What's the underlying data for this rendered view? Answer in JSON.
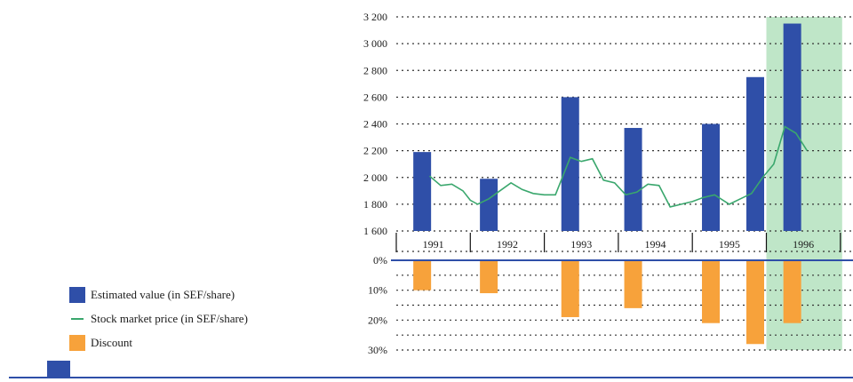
{
  "colors": {
    "bar": "#2f4fa8",
    "line": "#3aa76d",
    "discount": "#f7a23b",
    "shade": "#bfe6c8",
    "axis": "#2f4fa8",
    "grid": "#333333"
  },
  "legend": {
    "estimated": "Estimated value (in SEF/share)",
    "price": "Stock market price (in SEF/share)",
    "discount": "Discount"
  },
  "chart_data": {
    "type": "bar",
    "years": [
      "1991",
      "1992",
      "1993",
      "1994",
      "1995",
      "1996"
    ],
    "top_panel": {
      "ylim": [
        1600,
        3200
      ],
      "ticks": [
        "3 200",
        "3 000",
        "2 800",
        "2 600",
        "2 400",
        "2 200",
        "2 000",
        "1 800",
        "1 600"
      ],
      "tick_values": [
        3200,
        3000,
        2800,
        2600,
        2400,
        2200,
        2000,
        1800,
        1600
      ],
      "grid": true,
      "shaded_period": "1996",
      "series": [
        {
          "name": "Estimated value (in SEF/share)",
          "type": "bar",
          "x": [
            1991.35,
            1992.25,
            1993.35,
            1994.2,
            1995.25,
            1995.85,
            1996.35
          ],
          "values": [
            2190,
            1990,
            2600,
            2370,
            2400,
            2750,
            3150
          ]
        },
        {
          "name": "Stock market price (in SEF/share)",
          "type": "line",
          "x": [
            1991.45,
            1991.6,
            1991.75,
            1991.9,
            1992.0,
            1992.1,
            1992.25,
            1992.4,
            1992.55,
            1992.7,
            1992.85,
            1993.0,
            1993.15,
            1993.35,
            1993.5,
            1993.65,
            1993.8,
            1993.95,
            1994.1,
            1994.25,
            1994.4,
            1994.55,
            1994.7,
            1994.85,
            1995.0,
            1995.15,
            1995.3,
            1995.5,
            1995.65,
            1995.8,
            1995.95,
            1996.1,
            1996.25,
            1996.4,
            1996.55
          ],
          "values": [
            2010,
            1940,
            1950,
            1900,
            1830,
            1800,
            1840,
            1900,
            1960,
            1910,
            1880,
            1870,
            1870,
            2150,
            2120,
            2140,
            1980,
            1960,
            1870,
            1890,
            1950,
            1940,
            1780,
            1800,
            1820,
            1850,
            1870,
            1800,
            1840,
            1880,
            2000,
            2100,
            2380,
            2330,
            2200
          ]
        }
      ]
    },
    "bottom_panel": {
      "ylim": [
        0,
        30
      ],
      "ticks": [
        "0%",
        "10%",
        "20%",
        "30%"
      ],
      "tick_values": [
        0,
        10,
        20,
        30
      ],
      "grid": true,
      "series": [
        {
          "name": "Discount",
          "type": "bar",
          "x": [
            1991.35,
            1992.25,
            1993.35,
            1994.2,
            1995.25,
            1995.85,
            1996.35
          ],
          "values": [
            10,
            11,
            19,
            16,
            21,
            28,
            21
          ]
        }
      ]
    }
  }
}
